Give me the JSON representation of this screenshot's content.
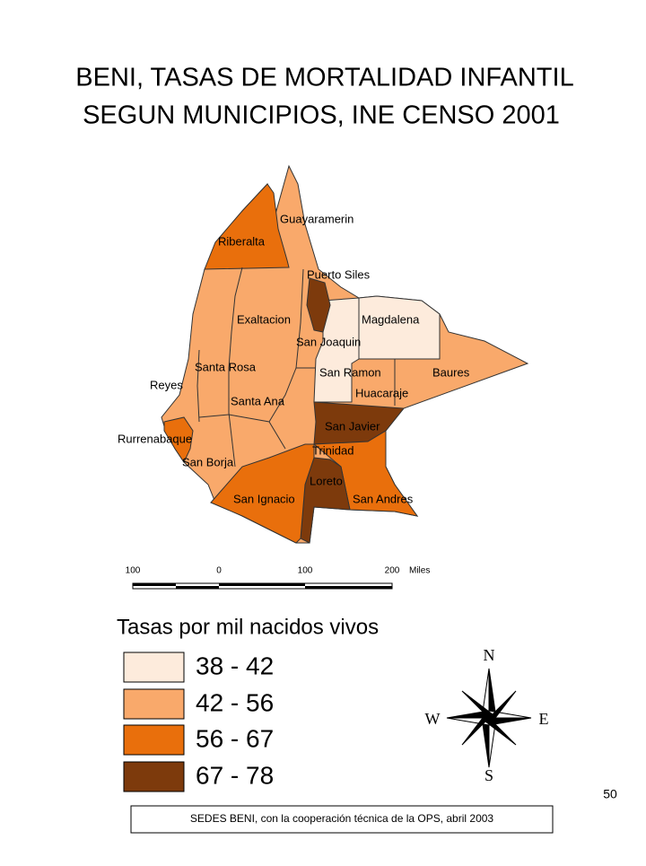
{
  "title": {
    "line1": "BENI, TASAS DE MORTALIDAD INFANTIL",
    "line2": "SEGUN MUNICIPIOS, INE CENSO 2001"
  },
  "municipalities": [
    "Guayaramerin",
    "Riberalta",
    "Puerto Siles",
    "Magdalena",
    "Exaltacion",
    "San Joaquin",
    "Santa Rosa",
    "San Ramon",
    "Baures",
    "Reyes",
    "Santa Ana",
    "Huacaraje",
    "San Javier",
    "Rurrenabaque",
    "Trinidad",
    "San Borja",
    "Loreto",
    "San Ignacio",
    "San Andres"
  ],
  "scale_bar": {
    "labels": [
      "100",
      "0",
      "100",
      "200"
    ],
    "unit": "Miles"
  },
  "legend": {
    "title": "Tasas por mil nacidos vivos",
    "items": [
      "38 - 42",
      "42 - 56",
      "56 - 67",
      "67 - 78"
    ]
  },
  "compass": {
    "north": "N",
    "east": "E",
    "south": "S",
    "west": "W"
  },
  "page_number": "50",
  "source": "SEDES BENI, con la cooperación técnica de la OPS, abril  2003"
}
